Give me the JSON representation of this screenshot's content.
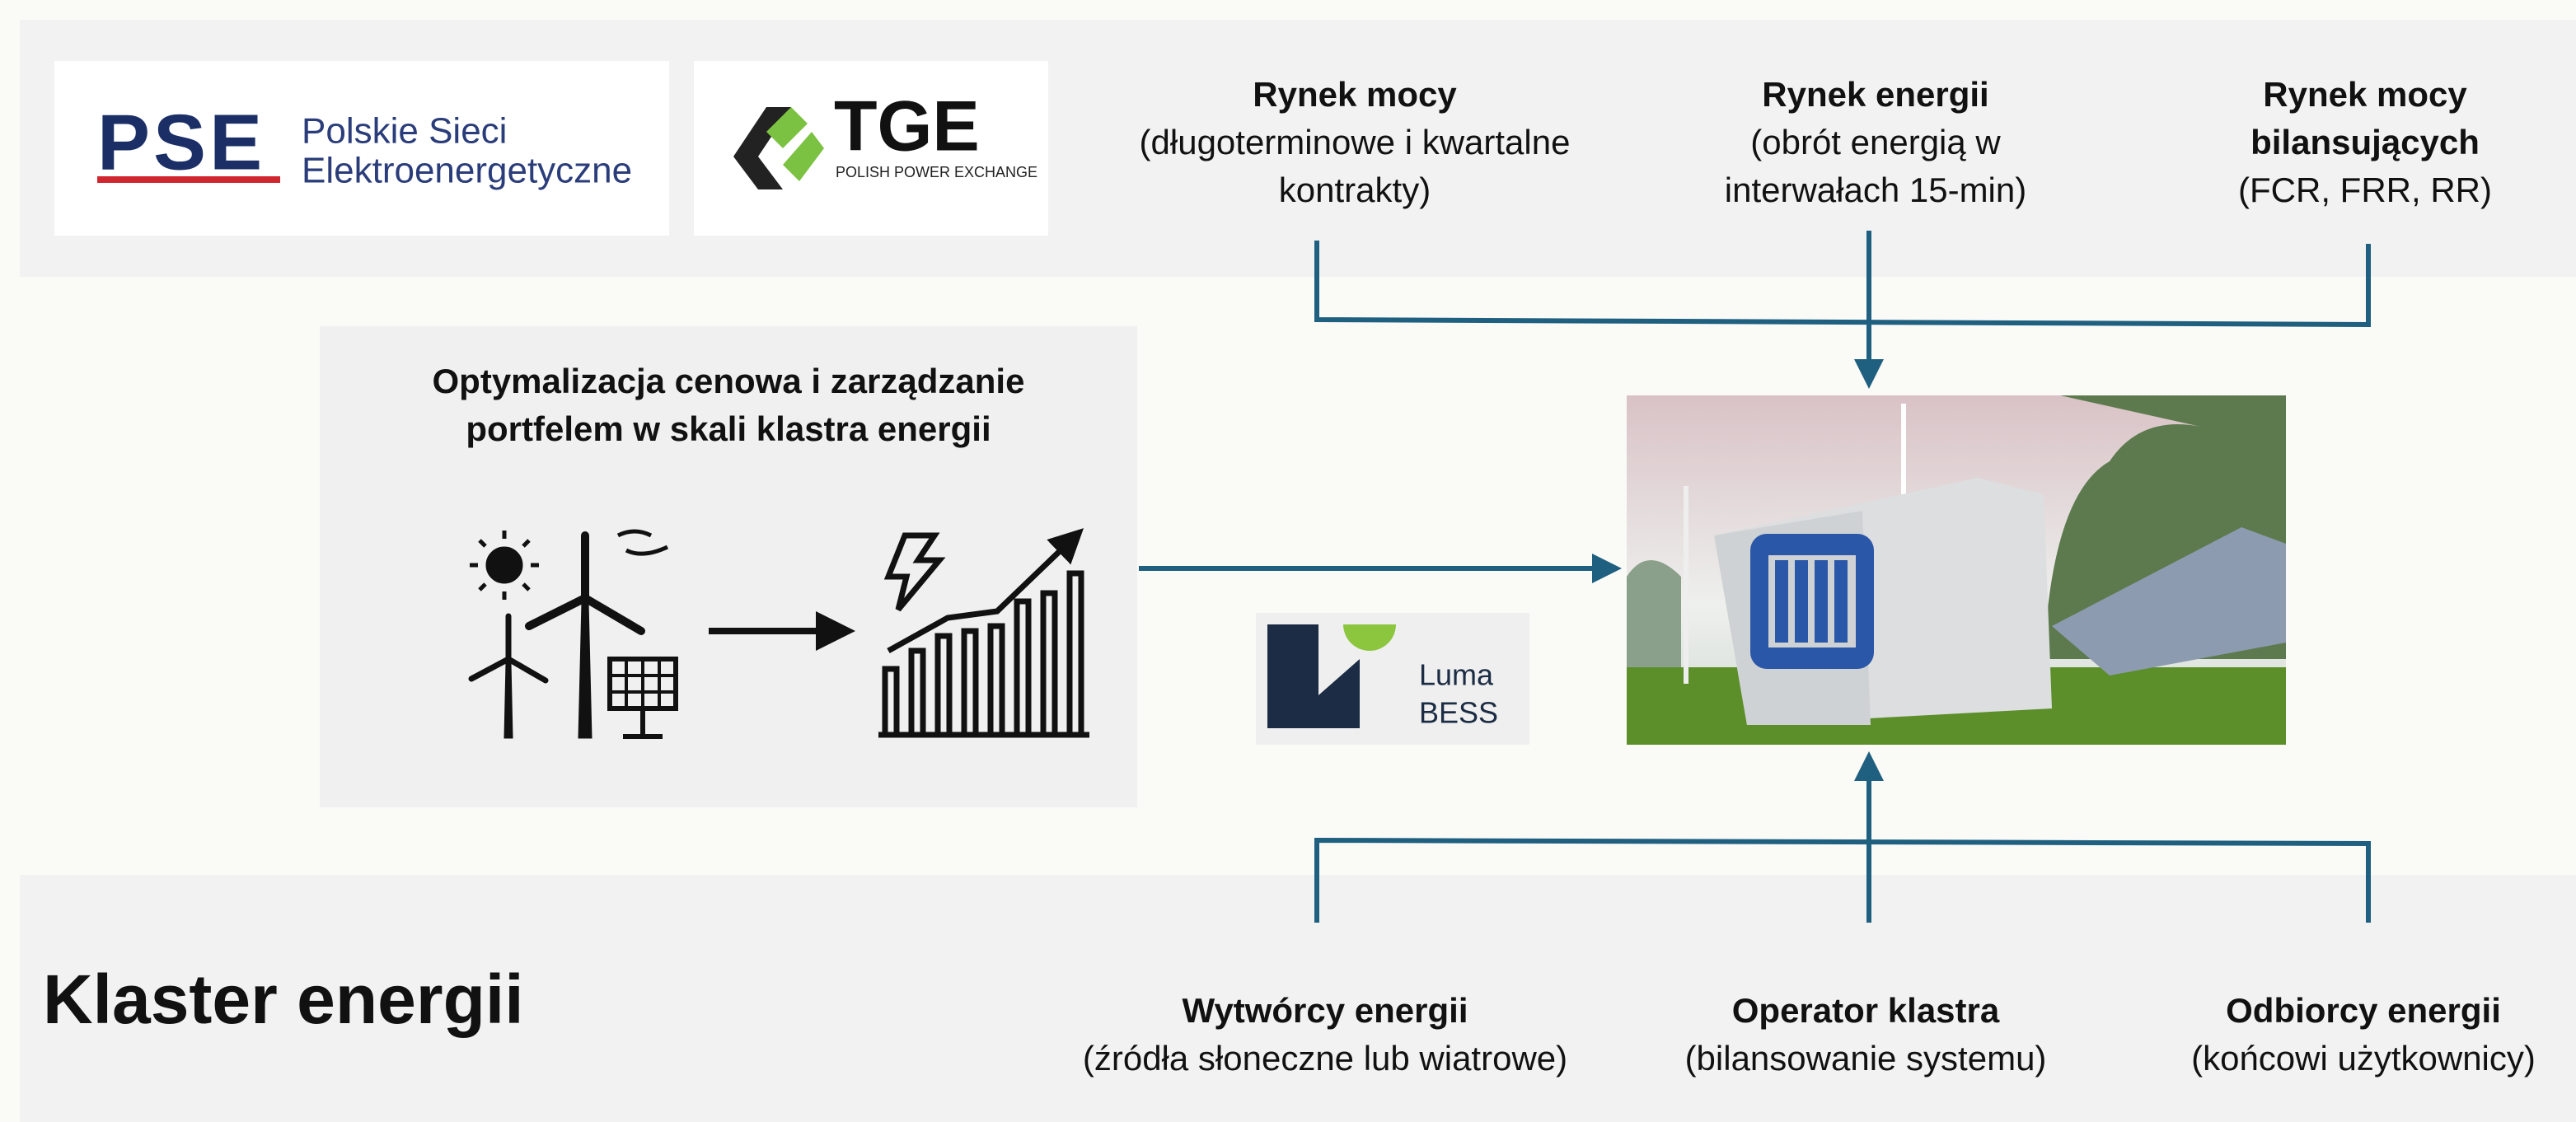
{
  "logos": {
    "pse": {
      "mark": "PSE",
      "name": [
        "Polskie Sieci",
        "Elektroenergetyczne"
      ]
    },
    "tge": {
      "mark": "TGE",
      "tagline": "POLISH POWER EXCHANGE"
    },
    "luma": {
      "name": [
        "Luma",
        "BESS"
      ]
    }
  },
  "markets": [
    {
      "title": [
        "Rynek mocy"
      ],
      "description": [
        "(długoterminowe i kwartalne",
        "kontrakty)"
      ]
    },
    {
      "title": [
        "Rynek energii"
      ],
      "description": [
        "(obrót energią w",
        "interwałach 15-min)"
      ]
    },
    {
      "title": [
        "Rynek mocy",
        "bilansujących"
      ],
      "description": [
        "(FCR, FRR, RR)"
      ]
    }
  ],
  "optimization": {
    "title": [
      "Optymalizacja cenowa i zarządzanie",
      "portfelem w skali klastra energii"
    ]
  },
  "cluster": {
    "title": "Klaster energii",
    "participants": [
      {
        "title": "Wytwórcy energii",
        "description": "(źródła słoneczne lub wiatrowe)"
      },
      {
        "title": "Operator klastra",
        "description": "(bilansowanie systemu)"
      },
      {
        "title": "Odbiorcy energii",
        "description": "(końcowi użytkownicy)"
      }
    ]
  }
}
